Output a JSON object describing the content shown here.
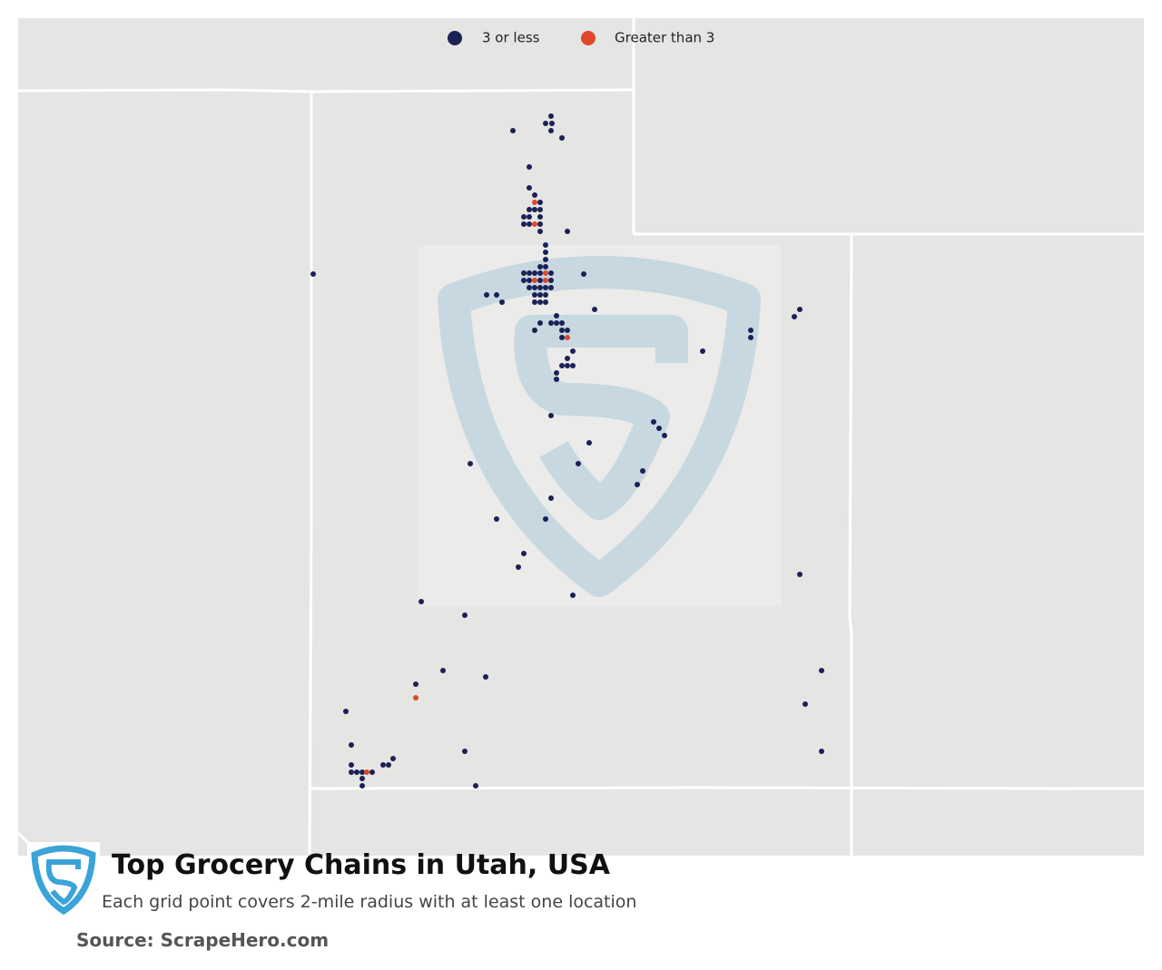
{
  "legend": {
    "items": [
      "3 or less",
      "Greater than 3"
    ]
  },
  "title": "Top Grocery Chains in Utah, USA",
  "subtitle": "Each grid point covers 2-mile radius with at least one location",
  "source": "Source: ScrapeHero.com"
}
